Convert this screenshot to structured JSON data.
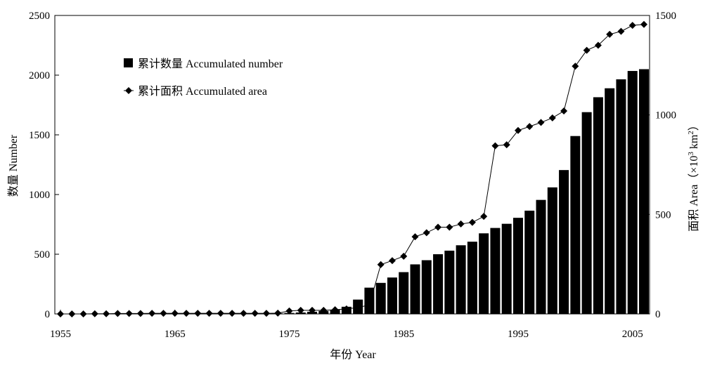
{
  "chart_data": {
    "type": "bar",
    "xlabel": "年份 Year",
    "ylabel_left": "数量 Number",
    "ylabel_right_main": "面积 Area（×10",
    "ylabel_right_sup1": "3",
    "ylabel_right_mid": " km",
    "ylabel_right_sup2": "2",
    "ylabel_right_end": "）",
    "x_ticks": [
      "1955",
      "1965",
      "1975",
      "1985",
      "1995",
      "2005"
    ],
    "y_left_ticks": [
      "0",
      "500",
      "1000",
      "1500",
      "2000",
      "2500"
    ],
    "y_right_ticks": [
      "0",
      "500",
      "1000",
      "1500"
    ],
    "ylim_left": [
      0,
      2500
    ],
    "ylim_right": [
      0,
      1500
    ],
    "xlim": [
      1955,
      2006
    ],
    "legend_position": "top-left",
    "series": [
      {
        "name": "累计数量 Accumulated number",
        "kind": "bar",
        "axis": "left",
        "color": "#000000",
        "x": [
          1956,
          1957,
          1958,
          1959,
          1960,
          1961,
          1962,
          1963,
          1964,
          1965,
          1966,
          1967,
          1968,
          1969,
          1970,
          1971,
          1972,
          1973,
          1974,
          1975,
          1976,
          1977,
          1978,
          1979,
          1980,
          1981,
          1982,
          1983,
          1984,
          1985,
          1986,
          1987,
          1988,
          1989,
          1990,
          1991,
          1992,
          1993,
          1994,
          1995,
          1996,
          1997,
          1998,
          1999,
          2000,
          2001,
          2002,
          2003,
          2004,
          2005,
          2006
        ],
        "values": [
          1,
          1,
          1,
          1,
          2,
          2,
          2,
          2,
          2,
          3,
          3,
          3,
          3,
          3,
          4,
          4,
          4,
          5,
          5,
          8,
          12,
          18,
          25,
          35,
          60,
          120,
          220,
          260,
          305,
          350,
          415,
          450,
          500,
          530,
          575,
          605,
          675,
          720,
          755,
          805,
          865,
          955,
          1060,
          1205,
          1490,
          1690,
          1815,
          1890,
          1965,
          2035,
          2050
        ]
      },
      {
        "name": "累计面积 Accumulated area",
        "kind": "line",
        "axis": "right",
        "color": "#000000",
        "x": [
          1955,
          1956,
          1957,
          1958,
          1959,
          1960,
          1961,
          1962,
          1963,
          1964,
          1965,
          1966,
          1967,
          1968,
          1969,
          1970,
          1971,
          1972,
          1973,
          1974,
          1975,
          1976,
          1977,
          1978,
          1979,
          1980,
          1981,
          1982,
          1983,
          1984,
          1985,
          1986,
          1987,
          1988,
          1989,
          1990,
          1991,
          1992,
          1993,
          1994,
          1995,
          1996,
          1997,
          1998,
          1999,
          2000,
          2001,
          2002,
          2003,
          2004,
          2005,
          2006
        ],
        "values": [
          0,
          0,
          0,
          1,
          1,
          2,
          2,
          2,
          3,
          3,
          3,
          3,
          3,
          3,
          3,
          3,
          3,
          3,
          3,
          4,
          15,
          18,
          18,
          18,
          21,
          25,
          32,
          45,
          248,
          268,
          290,
          388,
          408,
          436,
          436,
          452,
          460,
          490,
          845,
          850,
          922,
          942,
          962,
          985,
          1020,
          1245,
          1325,
          1350,
          1405,
          1420,
          1450,
          1455
        ]
      }
    ]
  }
}
